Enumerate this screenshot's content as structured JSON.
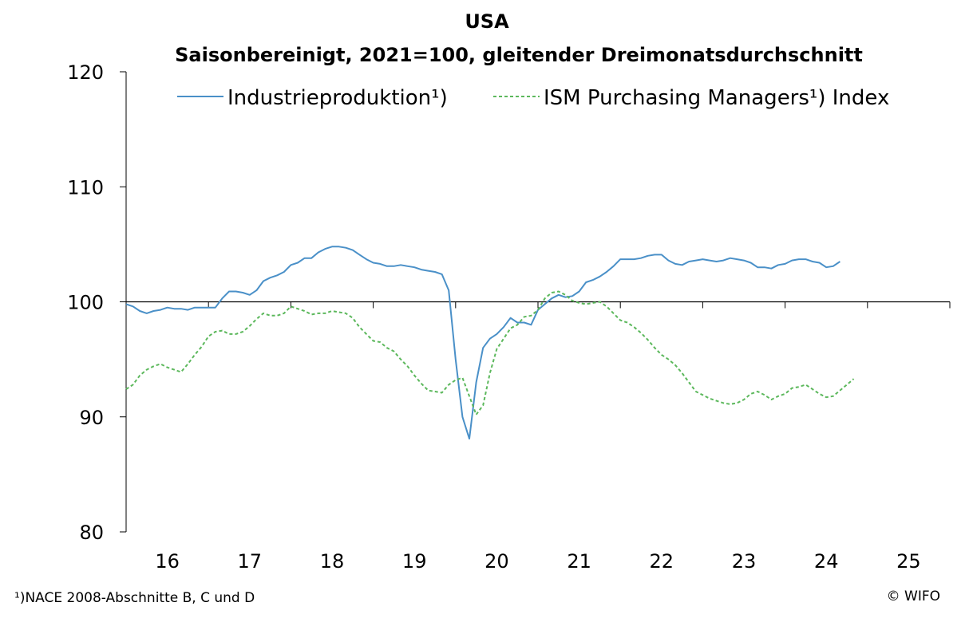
{
  "chart_data": {
    "type": "line",
    "title": "USA",
    "subtitle": "Saisonbereinigt, 2021=100, gleitender Dreimonatsdurchschnitt",
    "xlabel": "",
    "ylabel": "",
    "ylim": [
      80,
      120
    ],
    "yticks": [
      "80",
      "90",
      "100",
      "110",
      "120"
    ],
    "xlim": [
      2016,
      2026
    ],
    "xticks": [
      "16",
      "17",
      "18",
      "19",
      "20",
      "21",
      "22",
      "23",
      "24",
      "25"
    ],
    "grid": false,
    "reference_line": 100,
    "legend_position": "top",
    "series": [
      {
        "name": "Industrieproduktion¹)",
        "style": "solid",
        "color": "#4a90c8",
        "start": "2016-01",
        "values": [
          99.8,
          99.6,
          99.2,
          99.0,
          99.2,
          99.3,
          99.5,
          99.4,
          99.4,
          99.3,
          99.5,
          99.5,
          99.5,
          99.5,
          100.3,
          100.9,
          100.9,
          100.8,
          100.6,
          101.0,
          101.8,
          102.1,
          102.3,
          102.6,
          103.2,
          103.4,
          103.8,
          103.8,
          104.3,
          104.6,
          104.8,
          104.8,
          104.7,
          104.5,
          104.1,
          103.7,
          103.4,
          103.3,
          103.1,
          103.1,
          103.2,
          103.1,
          103.0,
          102.8,
          102.7,
          102.6,
          102.4,
          101.0,
          95.0,
          90.0,
          88.1,
          93.0,
          96.0,
          96.8,
          97.2,
          97.8,
          98.6,
          98.2,
          98.2,
          98.0,
          99.3,
          99.8,
          100.3,
          100.6,
          100.4,
          100.5,
          100.9,
          101.7,
          101.9,
          102.2,
          102.6,
          103.1,
          103.7,
          103.7,
          103.7,
          103.8,
          104.0,
          104.1,
          104.1,
          103.6,
          103.3,
          103.2,
          103.5,
          103.6,
          103.7,
          103.6,
          103.5,
          103.6,
          103.8,
          103.7,
          103.6,
          103.4,
          103.0,
          103.0,
          102.9,
          103.2,
          103.3,
          103.6,
          103.7,
          103.7,
          103.5,
          103.4,
          103.0,
          103.1,
          103.5
        ]
      },
      {
        "name": "ISM Purchasing Managers¹) Index",
        "style": "dashed",
        "color": "#5cb85c",
        "start": "2016-01",
        "values": [
          92.4,
          92.8,
          93.6,
          94.1,
          94.4,
          94.6,
          94.3,
          94.1,
          93.9,
          94.6,
          95.4,
          96.1,
          97.0,
          97.4,
          97.5,
          97.2,
          97.2,
          97.4,
          97.9,
          98.5,
          99.0,
          98.8,
          98.8,
          99.0,
          99.6,
          99.4,
          99.2,
          98.9,
          99.0,
          99.0,
          99.2,
          99.1,
          99.0,
          98.6,
          97.8,
          97.2,
          96.6,
          96.5,
          96.0,
          95.7,
          95.0,
          94.4,
          93.6,
          92.9,
          92.3,
          92.2,
          92.1,
          92.8,
          93.2,
          93.4,
          91.8,
          90.2,
          91.0,
          93.8,
          95.9,
          96.8,
          97.7,
          98.0,
          98.7,
          98.8,
          99.3,
          100.3,
          100.8,
          100.9,
          100.6,
          100.1,
          99.9,
          99.8,
          99.9,
          100.0,
          99.6,
          99.0,
          98.4,
          98.2,
          97.8,
          97.3,
          96.7,
          96.0,
          95.4,
          95.0,
          94.5,
          93.8,
          93.0,
          92.2,
          91.9,
          91.6,
          91.4,
          91.2,
          91.1,
          91.2,
          91.5,
          92.0,
          92.2,
          91.9,
          91.5,
          91.8,
          92.0,
          92.5,
          92.6,
          92.8,
          92.4,
          92.0,
          91.7,
          91.8,
          92.3,
          92.8,
          93.3
        ]
      }
    ]
  },
  "footnote": "¹)NACE 2008-Abschnitte B, C und D",
  "copyright": "© WIFO"
}
